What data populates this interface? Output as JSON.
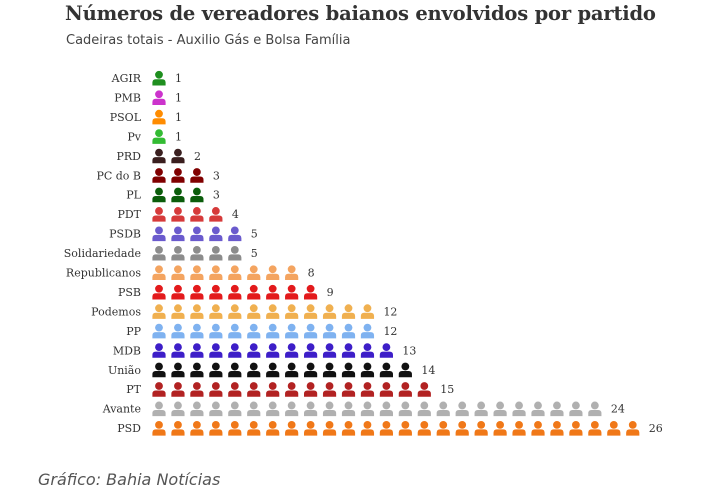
{
  "chart_data": {
    "type": "pictogram-bar",
    "title": "Números de vereadores baianos envolvidos por partido",
    "subtitle": "Cadeiras totais - Auxilio Gás e Bolsa Família",
    "unit_icon": "person-icon",
    "categories": [
      "AGIR",
      "PMB",
      "PSOL",
      "Pv",
      "PRD",
      "PC do B",
      "PL",
      "PDT",
      "PSDB",
      "Solidariedade",
      "Republicanos",
      "PSB",
      "Podemos",
      "PP",
      "MDB",
      "União",
      "PT",
      "Avante",
      "PSD"
    ],
    "values": [
      1,
      1,
      1,
      1,
      2,
      3,
      3,
      4,
      5,
      5,
      8,
      9,
      12,
      12,
      13,
      14,
      15,
      24,
      26
    ],
    "colors": [
      "#1f8f1f",
      "#cc33cc",
      "#ff8c00",
      "#33bb33",
      "#3a1f1f",
      "#800000",
      "#0b5d0b",
      "#d63a3a",
      "#6a5acd",
      "#8c8c8c",
      "#f4a460",
      "#e31a1c",
      "#f0b050",
      "#7fb2f0",
      "#3d1ec8",
      "#111111",
      "#b22222",
      "#b0b0b0",
      "#f07818"
    ]
  },
  "source": "Gráfico: Bahia Notícias"
}
